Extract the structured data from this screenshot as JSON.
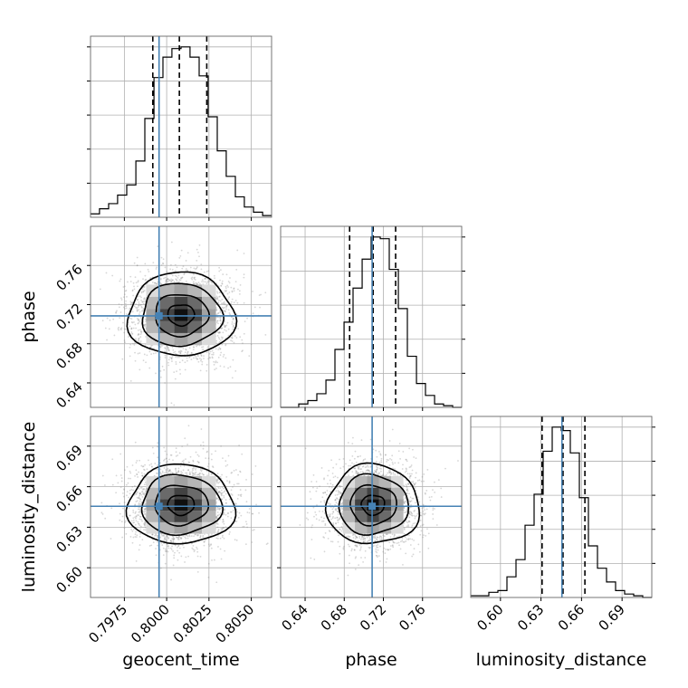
{
  "chart_data": {
    "type": "corner",
    "parameters": [
      "geocent_time",
      "phase",
      "luminosity_distance"
    ],
    "axis_labels": {
      "geocent_time": "geocent_time",
      "phase": "phase",
      "luminosity_distance": "luminosity_distance"
    },
    "ranges": {
      "geocent_time": [
        0.7955,
        0.8062
      ],
      "phase": [
        0.615,
        0.8
      ],
      "luminosity_distance": [
        0.578,
        0.712
      ]
    },
    "ticks": {
      "geocent_time": [
        0.7975,
        0.8,
        0.8025,
        0.805
      ],
      "phase": [
        0.64,
        0.68,
        0.72,
        0.76
      ],
      "luminosity_distance": [
        0.6,
        0.63,
        0.66,
        0.69
      ]
    },
    "tick_labels": {
      "geocent_time": [
        "0.7975",
        "0.8000",
        "0.8025",
        "0.8050"
      ],
      "phase": [
        "0.64",
        "0.68",
        "0.72",
        "0.76"
      ],
      "luminosity_distance": [
        "0.60",
        "0.63",
        "0.66",
        "0.69"
      ]
    },
    "truths": {
      "geocent_time": 0.79955,
      "phase": 0.7085,
      "luminosity_distance": 0.6455
    },
    "quantiles": {
      "geocent_time": [
        0.79918,
        0.80075,
        0.80237
      ],
      "phase": [
        0.6855,
        0.7095,
        0.7325
      ],
      "luminosity_distance": [
        0.6308,
        0.6463,
        0.6625
      ]
    },
    "histograms": {
      "geocent_time": {
        "edges": [
          0.7955,
          0.79603,
          0.79657,
          0.7971,
          0.79764,
          0.79818,
          0.79871,
          0.79925,
          0.79978,
          0.80031,
          0.80085,
          0.80138,
          0.80192,
          0.80245,
          0.80299,
          0.80352,
          0.80406,
          0.80459,
          0.80513,
          0.80567,
          0.8062
        ],
        "counts": [
          0.02,
          0.05,
          0.08,
          0.13,
          0.19,
          0.33,
          0.58,
          0.82,
          0.94,
          0.99,
          1.0,
          0.94,
          0.83,
          0.59,
          0.39,
          0.24,
          0.12,
          0.06,
          0.03,
          0.01
        ]
      },
      "phase": {
        "edges": [
          0.615,
          0.6243,
          0.6335,
          0.6428,
          0.652,
          0.6613,
          0.6705,
          0.6798,
          0.689,
          0.6983,
          0.7075,
          0.7168,
          0.726,
          0.7353,
          0.7445,
          0.7538,
          0.763,
          0.7723,
          0.7815,
          0.7908,
          0.8
        ],
        "counts": [
          0.0,
          0.0,
          0.02,
          0.04,
          0.08,
          0.16,
          0.34,
          0.5,
          0.7,
          0.87,
          1.0,
          0.99,
          0.81,
          0.58,
          0.3,
          0.14,
          0.07,
          0.02,
          0.01,
          0.0
        ]
      },
      "luminosity_distance": {
        "edges": [
          0.578,
          0.5847,
          0.5914,
          0.5981,
          0.6048,
          0.6115,
          0.6182,
          0.6249,
          0.6316,
          0.6383,
          0.645,
          0.6517,
          0.6584,
          0.6651,
          0.6718,
          0.6785,
          0.6852,
          0.6919,
          0.6986,
          0.7053,
          0.712
        ],
        "counts": [
          0.01,
          0.01,
          0.03,
          0.04,
          0.12,
          0.22,
          0.42,
          0.6,
          0.85,
          0.99,
          0.97,
          0.84,
          0.58,
          0.3,
          0.17,
          0.09,
          0.04,
          0.02,
          0.01,
          0.0
        ]
      }
    },
    "means": {
      "geocent_time": 0.80085,
      "phase": 0.7095,
      "luminosity_distance": 0.6465
    },
    "sigmas": {
      "geocent_time": 0.0015,
      "phase": 0.0225,
      "luminosity_distance": 0.0155
    },
    "contour_levels_sigma": [
      0.5,
      1.0,
      1.5,
      2.0
    ],
    "grid": true,
    "colors": {
      "truth": "#4682b4",
      "histogram": "#000000",
      "contour": "#000000",
      "scatter": "#8c8c8c",
      "grid": "#b0b0b0"
    }
  }
}
